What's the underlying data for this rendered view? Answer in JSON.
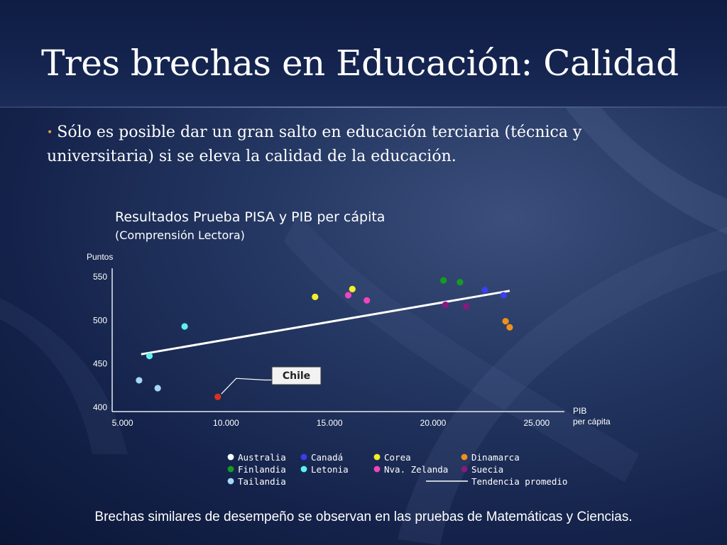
{
  "slide": {
    "title": "Tres brechas en Educación: Calidad",
    "bullet": "Sólo es posible dar un gran salto en educación terciaria (técnica y universitaria) si se eleva la calidad de la educación.",
    "footer": "Brechas similares de desempeño se observan en las pruebas de Matemáticas y Ciencias."
  },
  "chart_data": {
    "type": "scatter",
    "title": "Resultados Prueba PISA y PIB per cápita",
    "subtitle": "(Comprensión Lectora)",
    "ylabel": "Puntos",
    "xlabel": "PIB per cápita",
    "xlim": [
      4500,
      26000
    ],
    "ylim": [
      395,
      560
    ],
    "x_ticks": [
      5000,
      10000,
      15000,
      20000,
      25000
    ],
    "x_tick_labels": [
      "5.000",
      "10.000",
      "15.000",
      "20.000",
      "25.000"
    ],
    "y_ticks": [
      400,
      450,
      500,
      550
    ],
    "y_tick_labels": [
      "400",
      "450",
      "500",
      "550"
    ],
    "series": [
      {
        "name": "Australia",
        "color": "#ffffff",
        "points": []
      },
      {
        "name": "Canadá",
        "color": "#3b3df0",
        "points": [
          [
            22500,
            535
          ],
          [
            23400,
            529
          ]
        ]
      },
      {
        "name": "Corea",
        "color": "#f4f02a",
        "points": [
          [
            14300,
            527
          ],
          [
            16100,
            536
          ]
        ]
      },
      {
        "name": "Dinamarca",
        "color": "#f0901c",
        "points": [
          [
            23500,
            499
          ],
          [
            23700,
            492
          ]
        ]
      },
      {
        "name": "Finlandia",
        "color": "#149c20",
        "points": [
          [
            20500,
            546
          ],
          [
            21300,
            544
          ]
        ]
      },
      {
        "name": "Letonia",
        "color": "#5ef0f0",
        "points": [
          [
            6300,
            459
          ],
          [
            8000,
            493
          ]
        ]
      },
      {
        "name": "Nva. Zelanda",
        "color": "#f044c0",
        "points": [
          [
            15900,
            529
          ],
          [
            16800,
            523
          ]
        ]
      },
      {
        "name": "Suecia",
        "color": "#8a1880",
        "points": [
          [
            20600,
            518
          ],
          [
            21600,
            516
          ]
        ]
      },
      {
        "name": "Tailandia",
        "color": "#a4d8f4",
        "points": [
          [
            5800,
            431
          ],
          [
            6700,
            422
          ]
        ]
      },
      {
        "name": "Chile",
        "color": "#d8321e",
        "points": [
          [
            9600,
            412
          ]
        ]
      }
    ],
    "trend": {
      "name": "Tendencia promedio",
      "color": "#ffffff",
      "points": [
        [
          5900,
          461
        ],
        [
          23700,
          534
        ]
      ]
    },
    "annotation": {
      "label": "Chile",
      "x": 9600,
      "y": 412
    },
    "grid": false,
    "legend": "bottom"
  }
}
